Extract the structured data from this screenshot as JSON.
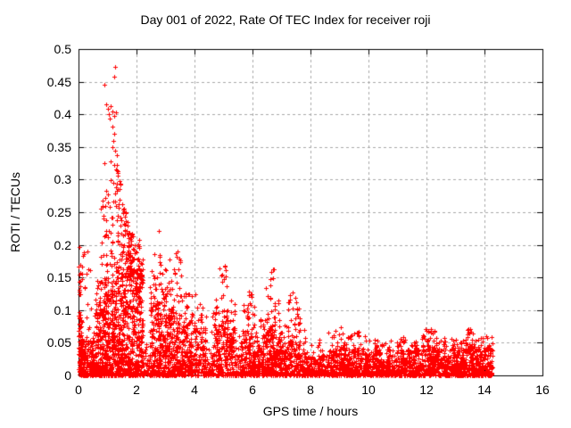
{
  "page": {
    "background": "#ffffff"
  },
  "chart_data": {
    "type": "scatter",
    "title": "Day 001 of 2022, Rate Of TEC Index for receiver roji",
    "xlabel": "GPS time / hours",
    "ylabel": "ROTI / TECUs",
    "xlim": [
      0,
      16
    ],
    "ylim": [
      0,
      0.5
    ],
    "xticks": {
      "values": [
        0,
        2,
        4,
        6,
        8,
        10,
        12,
        14,
        16
      ],
      "labels": [
        "0",
        "2",
        "4",
        "6",
        "8",
        "10",
        "12",
        "14",
        "16"
      ]
    },
    "yticks": {
      "values": [
        0,
        0.05,
        0.1,
        0.15,
        0.2,
        0.25,
        0.3,
        0.35,
        0.4,
        0.45,
        0.5
      ],
      "labels": [
        "0",
        "0.05",
        "0.1",
        "0.15",
        "0.2",
        "0.25",
        "0.3",
        "0.35",
        "0.4",
        "0.45",
        "0.5"
      ]
    },
    "grid": true,
    "legend": "none",
    "marker": {
      "shape": "plus",
      "color": "#ff0000",
      "size": 5
    },
    "axis_color": "#000000",
    "grid_color": "#a8a8a8",
    "data_time_range_hours": [
      0,
      14.28
    ],
    "max_point": [
      1.27,
      0.478
    ],
    "density_segments_format": [
      "x_start_hour",
      "x_end_hour",
      "dense_band_top_roti",
      "envelope_max_roti",
      "n_points",
      "fraction_above_band"
    ],
    "density_segments": [
      [
        0.0,
        0.12,
        0.1,
        0.2,
        90,
        0.18
      ],
      [
        0.12,
        0.3,
        0.06,
        0.19,
        80,
        0.1
      ],
      [
        0.3,
        0.55,
        0.055,
        0.165,
        90,
        0.1
      ],
      [
        0.55,
        0.75,
        0.09,
        0.15,
        110,
        0.18
      ],
      [
        0.75,
        0.95,
        0.11,
        0.27,
        130,
        0.22
      ],
      [
        0.95,
        1.2,
        0.12,
        0.3,
        160,
        0.25
      ],
      [
        1.2,
        1.45,
        0.13,
        0.33,
        170,
        0.25
      ],
      [
        1.45,
        1.7,
        0.15,
        0.26,
        180,
        0.3
      ],
      [
        1.7,
        1.95,
        0.15,
        0.22,
        180,
        0.3
      ],
      [
        1.95,
        2.1,
        0.13,
        0.21,
        110,
        0.28
      ],
      [
        2.1,
        2.22,
        0.14,
        0.18,
        90,
        0.28
      ],
      [
        2.22,
        2.45,
        0.025,
        0.05,
        30,
        0.1
      ],
      [
        2.45,
        2.7,
        0.1,
        0.16,
        110,
        0.15
      ],
      [
        2.7,
        2.9,
        0.11,
        0.19,
        100,
        0.15
      ],
      [
        2.9,
        3.1,
        0.1,
        0.17,
        100,
        0.15
      ],
      [
        3.1,
        3.3,
        0.09,
        0.15,
        95,
        0.15
      ],
      [
        3.3,
        3.55,
        0.09,
        0.19,
        100,
        0.12
      ],
      [
        3.55,
        3.8,
        0.08,
        0.13,
        95,
        0.12
      ],
      [
        3.8,
        4.1,
        0.08,
        0.125,
        100,
        0.12
      ],
      [
        4.1,
        4.4,
        0.07,
        0.11,
        90,
        0.12
      ],
      [
        4.4,
        4.58,
        0.02,
        0.04,
        25,
        0.1
      ],
      [
        4.58,
        4.85,
        0.07,
        0.12,
        90,
        0.12
      ],
      [
        4.85,
        5.15,
        0.09,
        0.17,
        110,
        0.15
      ],
      [
        5.15,
        5.4,
        0.07,
        0.12,
        85,
        0.12
      ],
      [
        5.4,
        5.6,
        0.03,
        0.06,
        40,
        0.1
      ],
      [
        5.6,
        5.85,
        0.065,
        0.11,
        90,
        0.15
      ],
      [
        5.85,
        6.1,
        0.07,
        0.13,
        95,
        0.15
      ],
      [
        6.1,
        6.35,
        0.05,
        0.09,
        75,
        0.12
      ],
      [
        6.35,
        6.55,
        0.07,
        0.14,
        85,
        0.15
      ],
      [
        6.55,
        6.8,
        0.08,
        0.165,
        100,
        0.15
      ],
      [
        6.8,
        7.0,
        0.06,
        0.12,
        75,
        0.12
      ],
      [
        7.0,
        7.2,
        0.04,
        0.08,
        60,
        0.1
      ],
      [
        7.2,
        7.5,
        0.06,
        0.125,
        90,
        0.12
      ],
      [
        7.5,
        7.65,
        0.05,
        0.105,
        55,
        0.12
      ],
      [
        7.65,
        8.0,
        0.035,
        0.07,
        85,
        0.1
      ],
      [
        8.0,
        8.5,
        0.03,
        0.055,
        120,
        0.1
      ],
      [
        8.5,
        8.6,
        0.015,
        0.03,
        15,
        0.1
      ],
      [
        8.6,
        9.3,
        0.04,
        0.075,
        190,
        0.1
      ],
      [
        9.3,
        9.95,
        0.04,
        0.07,
        180,
        0.1
      ],
      [
        9.95,
        10.85,
        0.035,
        0.055,
        240,
        0.1
      ],
      [
        10.85,
        10.95,
        0.015,
        0.03,
        12,
        0.1
      ],
      [
        10.95,
        11.75,
        0.04,
        0.06,
        230,
        0.1
      ],
      [
        11.75,
        11.85,
        0.02,
        0.035,
        15,
        0.1
      ],
      [
        11.85,
        12.35,
        0.045,
        0.072,
        150,
        0.12
      ],
      [
        12.35,
        13.3,
        0.04,
        0.058,
        280,
        0.1
      ],
      [
        13.3,
        13.6,
        0.045,
        0.072,
        95,
        0.12
      ],
      [
        13.6,
        14.28,
        0.04,
        0.06,
        200,
        0.1
      ]
    ],
    "outliers": [
      [
        1.27,
        0.472
      ],
      [
        1.24,
        0.457
      ],
      [
        0.9,
        0.446
      ],
      [
        0.95,
        0.415
      ],
      [
        1.0,
        0.408
      ],
      [
        1.05,
        0.4
      ],
      [
        1.1,
        0.412
      ],
      [
        1.17,
        0.405
      ],
      [
        1.22,
        0.398
      ],
      [
        1.28,
        0.403
      ],
      [
        1.08,
        0.393
      ],
      [
        1.17,
        0.381
      ],
      [
        1.24,
        0.37
      ],
      [
        1.19,
        0.359
      ],
      [
        1.16,
        0.35
      ],
      [
        1.25,
        0.344
      ],
      [
        1.31,
        0.338
      ],
      [
        1.1,
        0.328
      ],
      [
        1.22,
        0.322
      ],
      [
        1.3,
        0.315
      ],
      [
        1.36,
        0.306
      ],
      [
        0.89,
        0.325
      ],
      [
        1.4,
        0.298
      ],
      [
        1.45,
        0.292
      ],
      [
        1.2,
        0.295
      ],
      [
        1.28,
        0.288
      ],
      [
        0.92,
        0.272
      ],
      [
        1.0,
        0.265
      ],
      [
        1.08,
        0.258
      ],
      [
        1.52,
        0.262
      ],
      [
        1.58,
        0.255
      ],
      [
        1.63,
        0.248
      ],
      [
        0.85,
        0.24
      ],
      [
        1.35,
        0.245
      ],
      [
        1.7,
        0.235
      ],
      [
        2.78,
        0.221
      ],
      [
        2.1,
        0.208
      ],
      [
        1.95,
        0.2
      ],
      [
        0.3,
        0.19
      ],
      [
        0.15,
        0.183
      ],
      [
        0.05,
        0.17
      ],
      [
        0.03,
        0.155
      ],
      [
        0.35,
        0.162
      ],
      [
        3.4,
        0.19
      ],
      [
        3.15,
        0.178
      ],
      [
        2.62,
        0.186
      ],
      [
        2.8,
        0.182
      ],
      [
        5.05,
        0.168
      ],
      [
        4.95,
        0.155
      ],
      [
        5.0,
        0.148
      ],
      [
        6.7,
        0.163
      ],
      [
        6.62,
        0.148
      ],
      [
        5.88,
        0.128
      ],
      [
        7.38,
        0.127
      ],
      [
        7.55,
        0.103
      ],
      [
        8.85,
        0.068
      ],
      [
        9.1,
        0.064
      ],
      [
        9.6,
        0.066
      ],
      [
        9.65,
        0.062
      ],
      [
        12.05,
        0.068
      ],
      [
        12.15,
        0.065
      ],
      [
        13.42,
        0.069
      ],
      [
        13.48,
        0.064
      ]
    ]
  }
}
